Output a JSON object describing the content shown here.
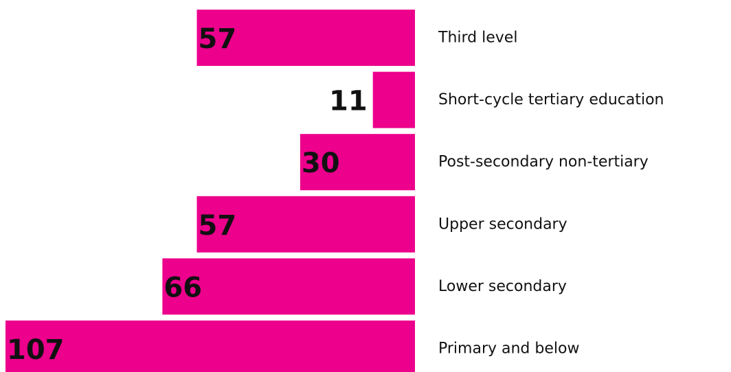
{
  "chart_data": {
    "type": "bar",
    "orientation": "horizontal",
    "color": "#ec008c",
    "categories": [
      "Third level",
      "Short-cycle tertiary education",
      "Post-secondary non-tertiary",
      "Upper secondary",
      "Lower secondary",
      "Primary and below"
    ],
    "values": [
      57,
      11,
      30,
      57,
      66,
      107
    ]
  }
}
